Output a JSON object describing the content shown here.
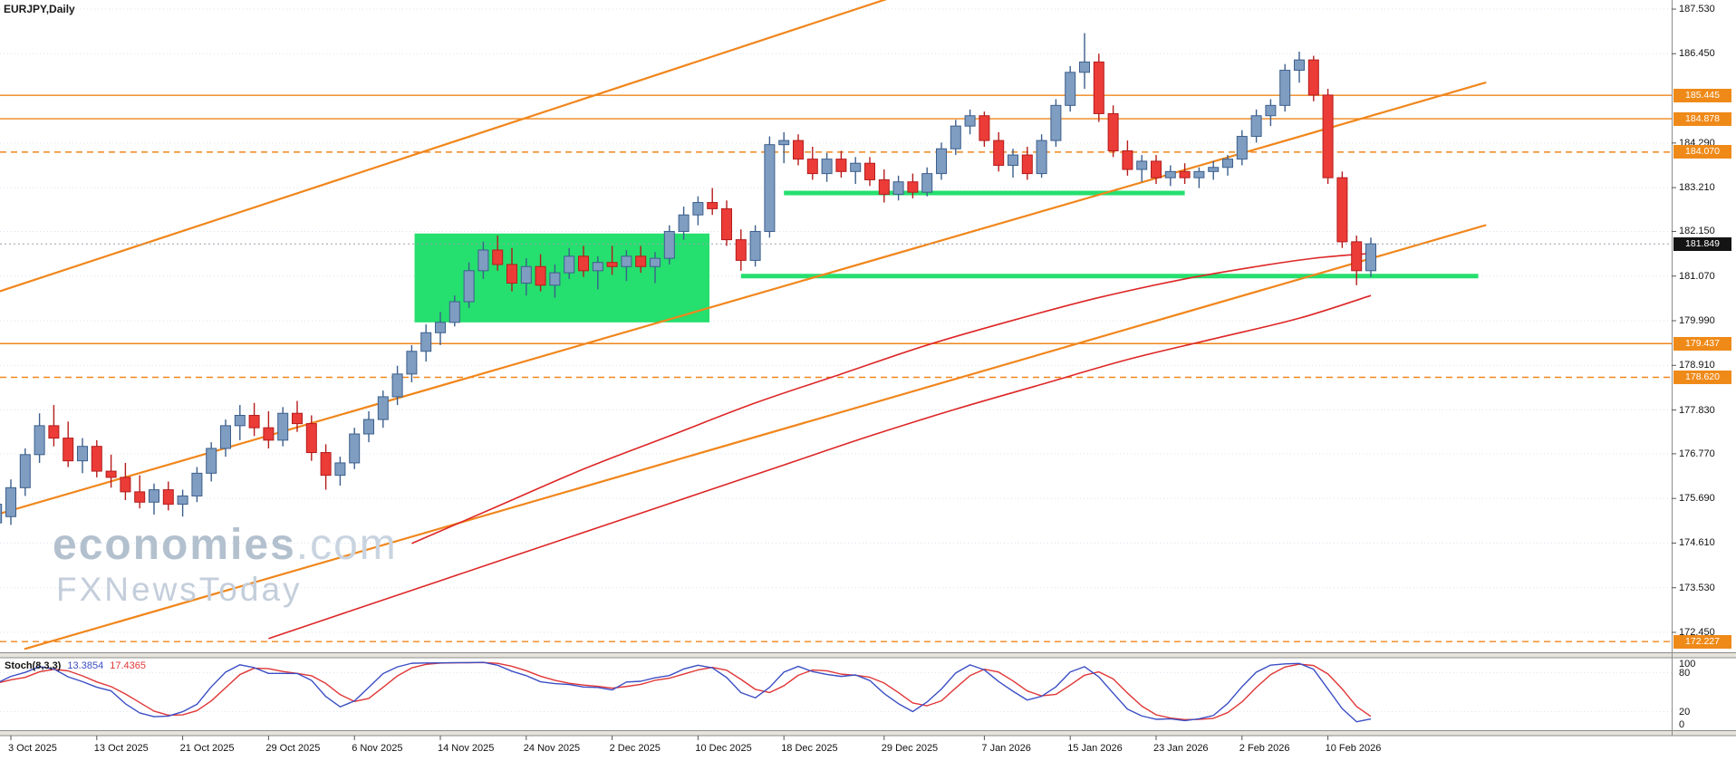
{
  "window": {
    "symbol_label": "EURJPY,Daily"
  },
  "watermark": {
    "brand": "economies",
    "domain": ".com",
    "line2": "FXNewsToday"
  },
  "colors": {
    "up": "#7f9dc1",
    "up_border": "#3c5f8c",
    "down": "#ec3c38",
    "down_border": "#b41c1c",
    "orange": "#f0861c",
    "green": "#25df6e",
    "ma": "#dd2626",
    "grid": "#d9e4f0",
    "stoch_main": "#3b4ec4",
    "stoch_signal": "#e03636",
    "badge_level_bg": "#ef8a19",
    "badge_current_bg": "#141414"
  },
  "chart_data": {
    "type": "candlestick",
    "symbol": "EURJPY",
    "timeframe": "Daily",
    "current_price": 181.849,
    "current_price_label": "181.849",
    "y_axis_range": {
      "ymin": 172.0,
      "ymax": 187.75
    },
    "grid": "dotted-horizontal",
    "price_axis_labels": [
      {
        "label": "187.530",
        "price": 187.53
      },
      {
        "label": "186.450",
        "price": 186.45
      },
      {
        "label": "184.290",
        "price": 184.29
      },
      {
        "label": "183.210",
        "price": 183.21
      },
      {
        "label": "182.150",
        "price": 182.15
      },
      {
        "label": "181.070",
        "price": 181.07
      },
      {
        "label": "179.990",
        "price": 179.99
      },
      {
        "label": "178.910",
        "price": 178.91
      },
      {
        "label": "177.830",
        "price": 177.83
      },
      {
        "label": "176.770",
        "price": 176.77
      },
      {
        "label": "175.690",
        "price": 175.69
      },
      {
        "label": "174.610",
        "price": 174.61
      },
      {
        "label": "173.530",
        "price": 173.53
      },
      {
        "label": "172.450",
        "price": 172.45
      }
    ],
    "level_lines": [
      {
        "label": "185.445",
        "price": 185.445,
        "style": "solid"
      },
      {
        "label": "184.878",
        "price": 184.878,
        "style": "solid"
      },
      {
        "label": "184.070",
        "price": 184.07,
        "style": "dashed"
      },
      {
        "label": "179.437",
        "price": 179.437,
        "style": "solid"
      },
      {
        "label": "178.620",
        "price": 178.62,
        "style": "dashed"
      },
      {
        "label": "172.227",
        "price": 172.227,
        "style": "dashed"
      }
    ],
    "trendlines": [
      {
        "from": [
          -1.5,
          180.62
        ],
        "to": [
          63,
          187.98
        ]
      },
      {
        "from": [
          -1.5,
          175.25
        ],
        "to": [
          103,
          185.75
        ]
      },
      {
        "from": [
          1,
          172.05
        ],
        "to": [
          103,
          182.3
        ]
      }
    ],
    "zones": {
      "box": {
        "from_bar": 28.2,
        "to_bar": 48.8,
        "top": 182.1,
        "bottom": 179.95
      },
      "lines": [
        {
          "from_bar": 54,
          "to_bar": 82,
          "price": 183.08
        },
        {
          "from_bar": 51,
          "to_bar": 102.5,
          "price": 181.07
        }
      ]
    },
    "moving_averages": [
      {
        "name": "ma-fast",
        "points": [
          [
            28,
            174.6
          ],
          [
            34,
            175.5
          ],
          [
            40,
            176.4
          ],
          [
            46,
            177.2
          ],
          [
            52,
            178.0
          ],
          [
            58,
            178.7
          ],
          [
            64,
            179.4
          ],
          [
            70,
            180.0
          ],
          [
            76,
            180.55
          ],
          [
            82,
            181.0
          ],
          [
            87,
            181.3
          ],
          [
            91,
            181.5
          ],
          [
            95,
            181.62
          ]
        ]
      },
      {
        "name": "ma-slow",
        "points": [
          [
            18,
            172.3
          ],
          [
            24,
            173.0
          ],
          [
            30,
            173.7
          ],
          [
            36,
            174.4
          ],
          [
            42,
            175.1
          ],
          [
            48,
            175.8
          ],
          [
            54,
            176.5
          ],
          [
            60,
            177.2
          ],
          [
            66,
            177.85
          ],
          [
            72,
            178.45
          ],
          [
            78,
            179.05
          ],
          [
            84,
            179.55
          ],
          [
            90,
            180.05
          ],
          [
            95,
            180.6
          ]
        ]
      }
    ],
    "x_axis": {
      "labels": [
        "3 Oct 2025",
        "13 Oct 2025",
        "21 Oct 2025",
        "29 Oct 2025",
        "6 Nov 2025",
        "14 Nov 2025",
        "24 Nov 2025",
        "2 Dec 2025",
        "10 Dec 2025",
        "18 Dec 2025",
        "29 Dec 2025",
        "7 Jan 2026",
        "15 Jan 2026",
        "23 Jan 2026",
        "2 Feb 2026",
        "10 Feb 2026"
      ],
      "bar_index": [
        0,
        6,
        12,
        18,
        24,
        30,
        36,
        42,
        48,
        54,
        61,
        68,
        74,
        80,
        86,
        92
      ]
    },
    "start_bar": -1,
    "candles": [
      [
        175.1,
        175.95,
        174.85,
        175.55
      ],
      [
        175.25,
        176.15,
        175.05,
        175.95
      ],
      [
        175.95,
        176.9,
        175.75,
        176.75
      ],
      [
        176.75,
        177.75,
        176.55,
        177.45
      ],
      [
        177.45,
        177.95,
        176.95,
        177.15
      ],
      [
        177.15,
        177.55,
        176.45,
        176.6
      ],
      [
        176.6,
        177.15,
        176.3,
        176.95
      ],
      [
        176.95,
        177.1,
        176.2,
        176.35
      ],
      [
        176.35,
        176.75,
        175.95,
        176.2
      ],
      [
        176.2,
        176.55,
        175.65,
        175.85
      ],
      [
        175.85,
        176.25,
        175.45,
        175.6
      ],
      [
        175.6,
        176.05,
        175.3,
        175.9
      ],
      [
        175.9,
        176.1,
        175.4,
        175.55
      ],
      [
        175.55,
        175.9,
        175.25,
        175.75
      ],
      [
        175.75,
        176.45,
        175.6,
        176.3
      ],
      [
        176.3,
        177.05,
        176.1,
        176.9
      ],
      [
        176.9,
        177.6,
        176.7,
        177.45
      ],
      [
        177.45,
        177.95,
        177.1,
        177.7
      ],
      [
        177.7,
        178.0,
        177.2,
        177.4
      ],
      [
        177.4,
        177.8,
        176.9,
        177.1
      ],
      [
        177.1,
        177.9,
        176.95,
        177.75
      ],
      [
        177.75,
        178.05,
        177.3,
        177.5
      ],
      [
        177.5,
        177.7,
        176.6,
        176.8
      ],
      [
        176.8,
        177.0,
        175.9,
        176.25
      ],
      [
        176.25,
        176.7,
        176.0,
        176.55
      ],
      [
        176.55,
        177.4,
        176.4,
        177.25
      ],
      [
        177.25,
        177.8,
        177.05,
        177.6
      ],
      [
        177.6,
        178.3,
        177.4,
        178.15
      ],
      [
        178.15,
        178.9,
        177.95,
        178.7
      ],
      [
        178.7,
        179.4,
        178.5,
        179.25
      ],
      [
        179.25,
        179.9,
        179.0,
        179.7
      ],
      [
        179.7,
        180.2,
        179.4,
        179.95
      ],
      [
        179.95,
        180.6,
        179.85,
        180.45
      ],
      [
        180.45,
        181.4,
        180.3,
        181.2
      ],
      [
        181.2,
        181.9,
        181.0,
        181.7
      ],
      [
        181.7,
        182.05,
        181.2,
        181.35
      ],
      [
        181.35,
        181.75,
        180.7,
        180.9
      ],
      [
        180.9,
        181.5,
        180.6,
        181.3
      ],
      [
        181.3,
        181.6,
        180.7,
        180.85
      ],
      [
        180.85,
        181.35,
        180.55,
        181.15
      ],
      [
        181.15,
        181.75,
        181.0,
        181.55
      ],
      [
        181.55,
        181.8,
        181.05,
        181.2
      ],
      [
        181.2,
        181.55,
        180.75,
        181.4
      ],
      [
        181.4,
        181.8,
        181.1,
        181.3
      ],
      [
        181.3,
        181.7,
        180.95,
        181.55
      ],
      [
        181.55,
        181.8,
        181.15,
        181.3
      ],
      [
        181.3,
        181.65,
        180.9,
        181.5
      ],
      [
        181.5,
        182.3,
        181.35,
        182.15
      ],
      [
        182.15,
        182.75,
        181.95,
        182.55
      ],
      [
        182.55,
        183.0,
        182.3,
        182.85
      ],
      [
        182.85,
        183.2,
        182.55,
        182.7
      ],
      [
        182.7,
        182.9,
        181.8,
        181.95
      ],
      [
        181.95,
        182.2,
        181.2,
        181.45
      ],
      [
        181.45,
        182.3,
        181.3,
        182.15
      ],
      [
        182.15,
        184.45,
        182.0,
        184.25
      ],
      [
        184.25,
        184.55,
        183.8,
        184.35
      ],
      [
        184.35,
        184.5,
        183.75,
        183.9
      ],
      [
        183.9,
        184.2,
        183.4,
        183.55
      ],
      [
        183.55,
        184.05,
        183.35,
        183.9
      ],
      [
        183.9,
        184.1,
        183.45,
        183.6
      ],
      [
        183.6,
        183.95,
        183.3,
        183.8
      ],
      [
        183.8,
        183.95,
        183.25,
        183.4
      ],
      [
        183.4,
        183.65,
        182.85,
        183.05
      ],
      [
        183.05,
        183.5,
        182.9,
        183.35
      ],
      [
        183.35,
        183.55,
        182.95,
        183.1
      ],
      [
        183.1,
        183.7,
        183.0,
        183.55
      ],
      [
        183.55,
        184.3,
        183.4,
        184.15
      ],
      [
        184.15,
        184.85,
        184.0,
        184.7
      ],
      [
        184.7,
        185.1,
        184.5,
        184.95
      ],
      [
        184.95,
        185.05,
        184.2,
        184.35
      ],
      [
        184.35,
        184.55,
        183.6,
        183.75
      ],
      [
        183.75,
        184.15,
        183.45,
        184.0
      ],
      [
        184.0,
        184.2,
        183.4,
        183.55
      ],
      [
        183.55,
        184.5,
        183.45,
        184.35
      ],
      [
        184.35,
        185.35,
        184.2,
        185.2
      ],
      [
        185.2,
        186.15,
        185.05,
        186.0
      ],
      [
        186.0,
        186.95,
        185.6,
        186.25
      ],
      [
        186.25,
        186.45,
        184.8,
        185.0
      ],
      [
        185.0,
        185.2,
        183.95,
        184.1
      ],
      [
        184.1,
        184.35,
        183.5,
        183.65
      ],
      [
        183.65,
        184.0,
        183.35,
        183.85
      ],
      [
        183.85,
        184.0,
        183.3,
        183.45
      ],
      [
        183.45,
        183.75,
        183.25,
        183.6
      ],
      [
        183.6,
        183.8,
        183.3,
        183.45
      ],
      [
        183.45,
        183.7,
        183.2,
        183.6
      ],
      [
        183.6,
        183.85,
        183.4,
        183.7
      ],
      [
        183.7,
        184.0,
        183.5,
        183.9
      ],
      [
        183.9,
        184.6,
        183.75,
        184.45
      ],
      [
        184.45,
        185.1,
        184.3,
        184.95
      ],
      [
        184.95,
        185.35,
        184.7,
        185.2
      ],
      [
        185.2,
        186.2,
        185.05,
        186.05
      ],
      [
        186.05,
        186.5,
        185.75,
        186.3
      ],
      [
        186.3,
        186.4,
        185.3,
        185.45
      ],
      [
        185.45,
        185.6,
        183.3,
        183.45
      ],
      [
        183.45,
        183.6,
        181.75,
        181.9
      ],
      [
        181.9,
        182.05,
        180.85,
        181.2
      ],
      [
        181.2,
        182.0,
        181.05,
        181.85
      ]
    ],
    "stochastic": {
      "label": "Stoch(8,3,3)",
      "value_main": "13.3854",
      "value_signal": "17.4365",
      "period_k": 8,
      "slowing": 3,
      "signal": 3,
      "scale_labels": [
        "100",
        "80",
        "20",
        "0"
      ]
    }
  }
}
